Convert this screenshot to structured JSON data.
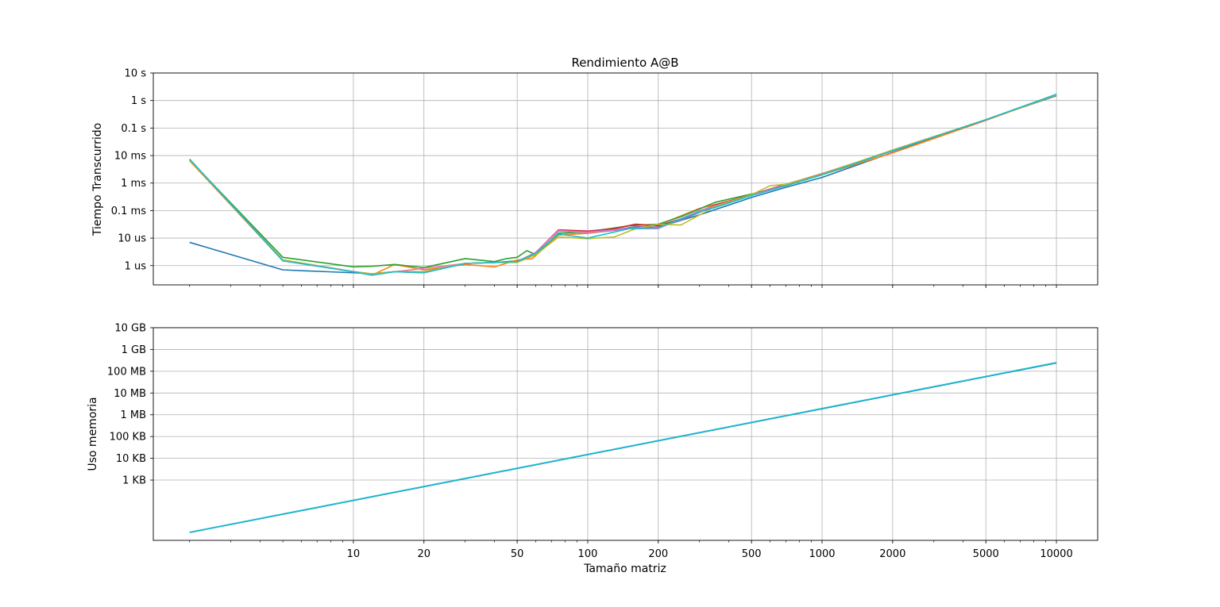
{
  "chart_data": [
    {
      "type": "line",
      "title": "Rendimiento A@B",
      "xlabel": "",
      "ylabel": "Tiempo Transcurrido",
      "xscale": "log",
      "yscale": "log",
      "xlim": [
        1.4,
        15000
      ],
      "ylim": [
        2e-07,
        10
      ],
      "grid": true,
      "x_ticks": [
        {
          "value": 10,
          "label": "10"
        },
        {
          "value": 20,
          "label": "20"
        },
        {
          "value": 50,
          "label": "50"
        },
        {
          "value": 100,
          "label": "100"
        },
        {
          "value": 200,
          "label": "200"
        },
        {
          "value": 500,
          "label": "500"
        },
        {
          "value": 1000,
          "label": "1000"
        },
        {
          "value": 2000,
          "label": "2000"
        },
        {
          "value": 5000,
          "label": "5000"
        },
        {
          "value": 10000,
          "label": "10000"
        }
      ],
      "show_x_tick_labels": false,
      "y_ticks": [
        {
          "value": 10,
          "label": "10 s"
        },
        {
          "value": 1,
          "label": "1 s"
        },
        {
          "value": 0.1,
          "label": "0.1 s"
        },
        {
          "value": 0.01,
          "label": "10 ms"
        },
        {
          "value": 0.001,
          "label": "1 ms"
        },
        {
          "value": 0.0001,
          "label": "0.1 ms"
        },
        {
          "value": 1e-05,
          "label": "10 us"
        },
        {
          "value": 1e-06,
          "label": "1 us"
        }
      ],
      "series": [
        {
          "color": "#1f77b4",
          "x": [
            2,
            5,
            10,
            12,
            15,
            20,
            30,
            40,
            50,
            60,
            75,
            100,
            150,
            200,
            300,
            500,
            700,
            1000,
            2000,
            5000,
            10000
          ],
          "y": [
            7e-06,
            7e-07,
            5.5e-07,
            5e-07,
            6e-07,
            5.5e-07,
            1.2e-06,
            1.3e-06,
            1.5e-06,
            2.5e-06,
            1.3e-05,
            1.5e-05,
            2.2e-05,
            2.5e-05,
            7e-05,
            0.0003,
            0.0007,
            0.0016,
            0.013,
            0.2,
            1.5
          ]
        },
        {
          "color": "#ff7f0e",
          "x": [
            2,
            5,
            10,
            12,
            15,
            20,
            30,
            40,
            50,
            58,
            75,
            100,
            150,
            200,
            300,
            500,
            700,
            1000,
            2000,
            5000,
            10000
          ],
          "y": [
            0.0065,
            1.5e-06,
            6e-07,
            4.5e-07,
            1.1e-06,
            7e-07,
            1.1e-06,
            9e-07,
            1.6e-06,
            1.8e-06,
            1.3e-05,
            1.5e-05,
            2.3e-05,
            3e-05,
            0.00012,
            0.00036,
            0.0008,
            0.002,
            0.0125,
            0.19,
            1.6
          ]
        },
        {
          "color": "#2ca02c",
          "x": [
            2,
            5,
            10,
            12,
            15,
            20,
            30,
            40,
            45,
            50,
            55,
            60,
            75,
            100,
            150,
            200,
            250,
            350,
            500,
            700,
            1000,
            2000,
            5000,
            10000
          ],
          "y": [
            0.007,
            2e-06,
            9e-07,
            9.5e-07,
            1.1e-06,
            8.5e-07,
            1.8e-06,
            1.4e-06,
            1.8e-06,
            2e-06,
            3.5e-06,
            2.5e-06,
            1.5e-05,
            1.7e-05,
            2.8e-05,
            3.2e-05,
            6e-05,
            0.0002,
            0.0004,
            0.0008,
            0.002,
            0.015,
            0.2,
            1.6
          ]
        },
        {
          "color": "#d62728",
          "x": [
            2,
            5,
            10,
            12,
            15,
            20,
            30,
            40,
            50,
            60,
            75,
            100,
            130,
            160,
            200,
            250,
            350,
            500,
            700,
            1000,
            2000,
            5000,
            10000
          ],
          "y": [
            0.007,
            1.6e-06,
            6e-07,
            5e-07,
            6e-07,
            6e-07,
            1.2e-06,
            1.3e-06,
            1.4e-06,
            3e-06,
            2e-05,
            1.8e-05,
            2.2e-05,
            3.2e-05,
            2.8e-05,
            5e-05,
            0.00016,
            0.00038,
            0.0009,
            0.0022,
            0.015,
            0.2,
            1.6
          ]
        },
        {
          "color": "#9467bd",
          "x": [
            2,
            5,
            10,
            12,
            15,
            20,
            30,
            40,
            50,
            60,
            75,
            100,
            130,
            160,
            200,
            250,
            350,
            500,
            700,
            1000,
            2000,
            5000,
            10000
          ],
          "y": [
            0.007,
            1.6e-06,
            6e-07,
            5e-07,
            6e-07,
            6e-07,
            1.2e-06,
            1.3e-06,
            1.4e-06,
            3e-06,
            1.8e-05,
            1.7e-05,
            2e-05,
            2.6e-05,
            2.5e-05,
            4.5e-05,
            0.00015,
            0.00037,
            0.00085,
            0.0021,
            0.015,
            0.2,
            1.6
          ]
        },
        {
          "color": "#e377c2",
          "x": [
            2,
            5,
            10,
            12,
            15,
            20,
            30,
            40,
            50,
            60,
            75,
            100,
            150,
            200,
            300,
            500,
            700,
            1000,
            2000,
            5000,
            10000
          ],
          "y": [
            0.007,
            1.6e-06,
            6e-07,
            5e-07,
            6e-07,
            8e-07,
            1.2e-06,
            1.3e-06,
            1.4e-06,
            3e-06,
            1.9e-05,
            1.6e-05,
            2.2e-05,
            2.2e-05,
            0.0001,
            0.00037,
            0.00085,
            0.0021,
            0.015,
            0.2,
            1.6
          ]
        },
        {
          "color": "#bcbd22",
          "x": [
            2,
            5,
            10,
            12,
            15,
            20,
            30,
            40,
            50,
            60,
            75,
            100,
            130,
            160,
            200,
            250,
            350,
            500,
            600,
            700,
            1000,
            2000,
            5000,
            10000
          ],
          "y": [
            0.007,
            1.6e-06,
            6e-07,
            5e-07,
            6e-07,
            6e-07,
            1.2e-06,
            1.3e-06,
            1.3e-06,
            2.5e-06,
            1.1e-05,
            9.5e-06,
            1.1e-05,
            2.2e-05,
            3.2e-05,
            3e-05,
            0.00014,
            0.00038,
            0.0008,
            0.0009,
            0.0021,
            0.016,
            0.2,
            1.6
          ]
        },
        {
          "color": "#17becf",
          "x": [
            2,
            5,
            10,
            12,
            15,
            20,
            30,
            40,
            50,
            60,
            75,
            100,
            150,
            200,
            300,
            350,
            500,
            700,
            1000,
            2000,
            5000,
            10000
          ],
          "y": [
            0.0075,
            1.5e-06,
            6e-07,
            4.5e-07,
            6e-07,
            5.5e-07,
            1.2e-06,
            1.3e-06,
            1.4e-06,
            2.8e-06,
            1.4e-05,
            1e-05,
            2.2e-05,
            2.4e-05,
            9e-05,
            0.00013,
            0.00035,
            0.0008,
            0.002,
            0.015,
            0.2,
            1.7
          ]
        }
      ]
    },
    {
      "type": "line",
      "title": "",
      "xlabel": "Tamaño matriz",
      "ylabel": "Uso memoria",
      "xscale": "log",
      "yscale": "log",
      "xlim": [
        1.4,
        15000
      ],
      "ylim": [
        1.7,
        10000000000
      ],
      "grid": true,
      "x_ticks": [
        {
          "value": 10,
          "label": "10"
        },
        {
          "value": 20,
          "label": "20"
        },
        {
          "value": 50,
          "label": "50"
        },
        {
          "value": 100,
          "label": "100"
        },
        {
          "value": 200,
          "label": "200"
        },
        {
          "value": 500,
          "label": "500"
        },
        {
          "value": 1000,
          "label": "1000"
        },
        {
          "value": 2000,
          "label": "2000"
        },
        {
          "value": 5000,
          "label": "5000"
        },
        {
          "value": 10000,
          "label": "10000"
        }
      ],
      "show_x_tick_labels": true,
      "y_ticks": [
        {
          "value": 10000000000,
          "label": "10 GB"
        },
        {
          "value": 1000000000,
          "label": "1 GB"
        },
        {
          "value": 100000000,
          "label": "100 MB"
        },
        {
          "value": 10000000,
          "label": "10 MB"
        },
        {
          "value": 1000000,
          "label": "1 MB"
        },
        {
          "value": 100000,
          "label": "100 KB"
        },
        {
          "value": 10000,
          "label": "10 KB"
        },
        {
          "value": 1000,
          "label": "1 KB"
        }
      ],
      "series": [
        {
          "color": "#1f77b4",
          "x": [
            2,
            10000
          ],
          "y": [
            3.9,
            240000000
          ]
        },
        {
          "color": "#17becf",
          "x": [
            2,
            10000
          ],
          "y": [
            4,
            250000000
          ]
        }
      ]
    }
  ]
}
